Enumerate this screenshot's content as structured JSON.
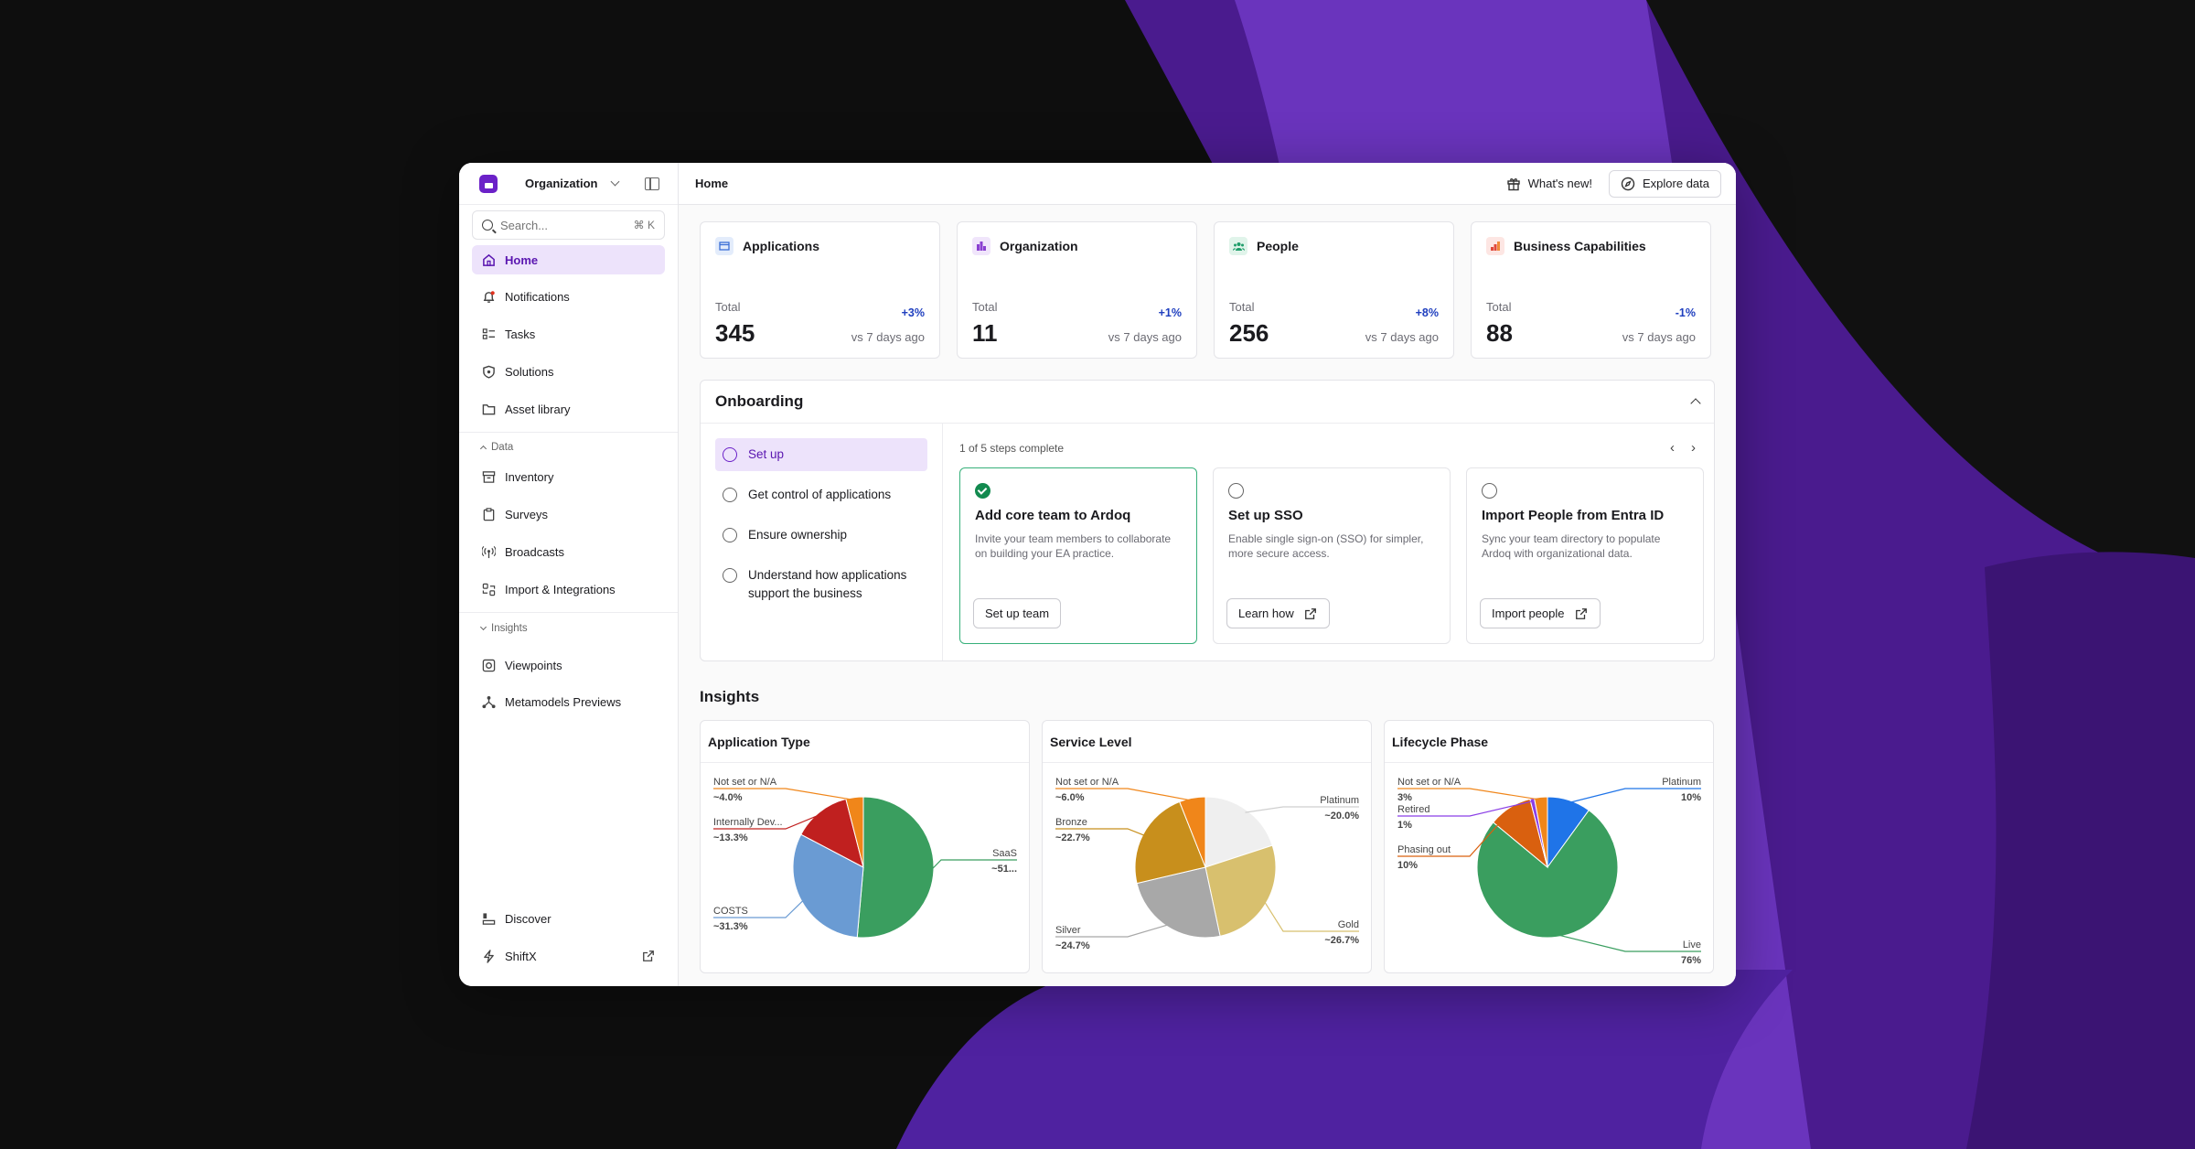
{
  "sidebar": {
    "org_name": "Organization",
    "search_placeholder": "Search...",
    "search_shortcut": "⌘ K",
    "items": [
      {
        "label": "Home",
        "icon": "home-icon",
        "active": true
      },
      {
        "label": "Notifications",
        "icon": "bell-icon"
      },
      {
        "label": "Tasks",
        "icon": "tasks-icon"
      },
      {
        "label": "Solutions",
        "icon": "shield-icon"
      },
      {
        "label": "Asset library",
        "icon": "folder-icon"
      }
    ],
    "data_section": "Data",
    "data_items": [
      {
        "label": "Inventory",
        "icon": "inventory-icon"
      },
      {
        "label": "Surveys",
        "icon": "clipboard-icon"
      },
      {
        "label": "Broadcasts",
        "icon": "broadcast-icon"
      },
      {
        "label": "Import & Integrations",
        "icon": "integrations-icon"
      }
    ],
    "insights_section": "Insights",
    "insights_items": [
      {
        "label": "Viewpoints",
        "icon": "viewpoints-icon"
      },
      {
        "label": "Metamodels Previews",
        "icon": "metamodel-icon"
      }
    ],
    "bottom_items": [
      {
        "label": "Discover",
        "icon": "discover-icon"
      },
      {
        "label": "ShiftX",
        "icon": "lightning-icon"
      }
    ]
  },
  "header": {
    "title": "Home",
    "whats_new": "What's new!",
    "explore": "Explore data"
  },
  "stats": [
    {
      "title": "Applications",
      "label": "Total",
      "value": "345",
      "change": "+3%",
      "compare": "vs 7 days ago",
      "color": "#3b6fd6",
      "bg": "#e3ecfb"
    },
    {
      "title": "Organization",
      "label": "Total",
      "value": "11",
      "change": "+1%",
      "compare": "vs 7 days ago",
      "color": "#8a3fd1",
      "bg": "#f0e5fb"
    },
    {
      "title": "People",
      "label": "Total",
      "value": "256",
      "change": "+8%",
      "compare": "vs 7 days ago",
      "color": "#1f9d6a",
      "bg": "#e0f4ea"
    },
    {
      "title": "Business Capabilities",
      "label": "Total",
      "value": "88",
      "change": "-1%",
      "compare": "vs 7 days ago",
      "color": "#e0483b",
      "bg": "#fde6e3"
    }
  ],
  "onboarding": {
    "title": "Onboarding",
    "progress": "1 of 5 steps complete",
    "steps": [
      {
        "label": "Set up",
        "active": true
      },
      {
        "label": "Get control of applications"
      },
      {
        "label": "Ensure ownership"
      },
      {
        "label": "Understand how applications support the business"
      }
    ],
    "cards": [
      {
        "title": "Add core team to Ardoq",
        "desc": "Invite your team members to collaborate on building your EA practice.",
        "button": "Set up team",
        "done": true,
        "external": false
      },
      {
        "title": "Set up SSO",
        "desc": "Enable single sign-on (SSO) for simpler, more secure access.",
        "button": "Learn how",
        "done": false,
        "external": true
      },
      {
        "title": "Import People from Entra ID",
        "desc": "Sync your team directory to populate Ardoq with organizational data.",
        "button": "Import people",
        "done": false,
        "external": true
      }
    ]
  },
  "insights": {
    "title": "Insights"
  },
  "chart_data": [
    {
      "type": "pie",
      "title": "Application Type",
      "slices": [
        {
          "label": "SaaS",
          "value_label": "~51...",
          "value": 51.4,
          "color": "#3a9e5f"
        },
        {
          "label": "COSTS",
          "value_label": "~31.3%",
          "value": 31.3,
          "color": "#6a9bd3"
        },
        {
          "label": "Internally Dev...",
          "value_label": "~13.3%",
          "value": 13.3,
          "color": "#c0201f"
        },
        {
          "label": "Not set or N/A",
          "value_label": "~4.0%",
          "value": 4.0,
          "color": "#f0861a"
        }
      ]
    },
    {
      "type": "pie",
      "title": "Service Level",
      "slices": [
        {
          "label": "Platinum",
          "value_label": "~20.0%",
          "value": 20.0,
          "color": "#efefef"
        },
        {
          "label": "Gold",
          "value_label": "~26.7%",
          "value": 26.7,
          "color": "#d8c06e"
        },
        {
          "label": "Silver",
          "value_label": "~24.7%",
          "value": 24.7,
          "color": "#a8a8a8"
        },
        {
          "label": "Bronze",
          "value_label": "~22.7%",
          "value": 22.7,
          "color": "#c88f1c"
        },
        {
          "label": "Not set or N/A",
          "value_label": "~6.0%",
          "value": 6.0,
          "color": "#f0861a"
        }
      ]
    },
    {
      "type": "pie",
      "title": "Lifecycle Phase",
      "slices": [
        {
          "label": "Platinum",
          "value_label": "10%",
          "value": 10,
          "color": "#1f74e8"
        },
        {
          "label": "Live",
          "value_label": "76%",
          "value": 76,
          "color": "#3a9e5f"
        },
        {
          "label": "Phasing out",
          "value_label": "10%",
          "value": 10,
          "color": "#d9600f"
        },
        {
          "label": "Retired",
          "value_label": "1%",
          "value": 1,
          "color": "#8b3fe6"
        },
        {
          "label": "Not set or N/A",
          "value_label": "3%",
          "value": 3,
          "color": "#f0861a"
        }
      ]
    }
  ]
}
